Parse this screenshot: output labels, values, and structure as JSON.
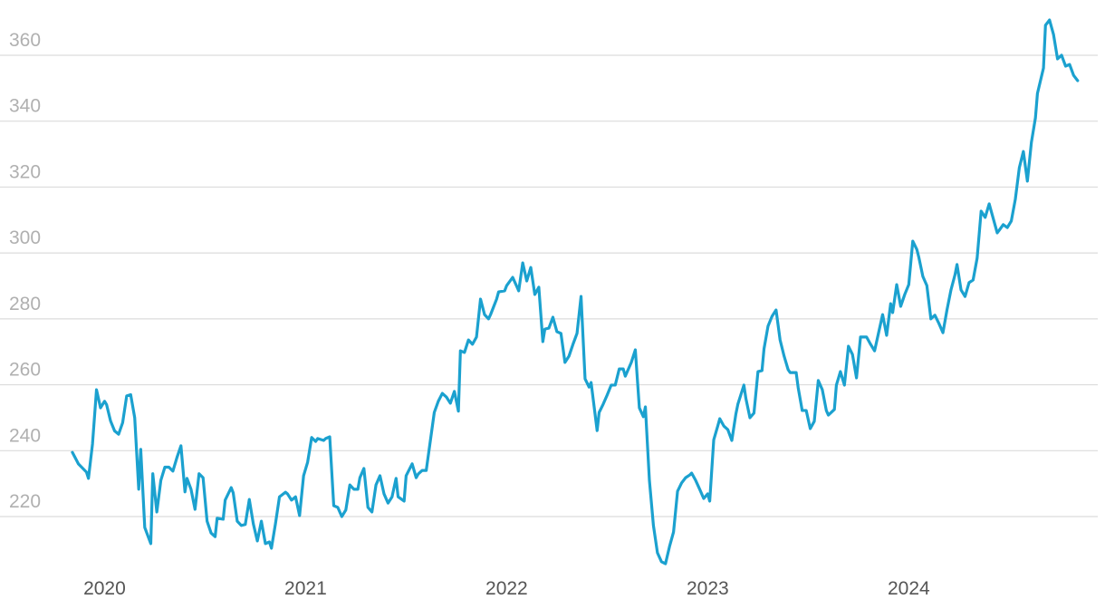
{
  "chart_data": {
    "type": "line",
    "color": "#1ba1cf",
    "grid": true,
    "xlim": [
      2019.48,
      2024.94
    ],
    "xticks": [
      2020,
      2021,
      2022,
      2023,
      2024
    ],
    "ylim": [
      204,
      376
    ],
    "yticks": [
      220,
      240,
      260,
      280,
      300,
      320,
      340,
      360
    ],
    "x": [
      2019.84,
      2019.87,
      2019.91,
      2019.92,
      2019.94,
      2019.96,
      2019.98,
      2020.0,
      2020.01,
      2020.03,
      2020.05,
      2020.07,
      2020.09,
      2020.11,
      2020.13,
      2020.15,
      2020.17,
      2020.18,
      2020.2,
      2020.23,
      2020.24,
      2020.26,
      2020.28,
      2020.3,
      2020.32,
      2020.34,
      2020.36,
      2020.38,
      2020.4,
      2020.41,
      2020.43,
      2020.45,
      2020.47,
      2020.49,
      2020.51,
      2020.53,
      2020.55,
      2020.56,
      2020.59,
      2020.6,
      2020.63,
      2020.64,
      2020.66,
      2020.68,
      2020.7,
      2020.72,
      2020.74,
      2020.76,
      2020.78,
      2020.8,
      2020.82,
      2020.83,
      2020.85,
      2020.87,
      2020.9,
      2020.91,
      2020.93,
      2020.95,
      2020.97,
      2020.99,
      2021.01,
      2021.03,
      2021.05,
      2021.06,
      2021.09,
      2021.1,
      2021.12,
      2021.14,
      2021.16,
      2021.18,
      2021.2,
      2021.22,
      2021.24,
      2021.26,
      2021.27,
      2021.29,
      2021.31,
      2021.33,
      2021.35,
      2021.37,
      2021.39,
      2021.41,
      2021.43,
      2021.45,
      2021.46,
      2021.49,
      2021.5,
      2021.53,
      2021.55,
      2021.56,
      2021.58,
      2021.6,
      2021.62,
      2021.64,
      2021.66,
      2021.68,
      2021.7,
      2021.72,
      2021.74,
      2021.76,
      2021.77,
      2021.79,
      2021.81,
      2021.83,
      2021.85,
      2021.87,
      2021.89,
      2021.91,
      2021.92,
      2021.95,
      2021.96,
      2021.99,
      2022.0,
      2022.03,
      2022.05,
      2022.06,
      2022.08,
      2022.1,
      2022.12,
      2022.14,
      2022.16,
      2022.18,
      2022.19,
      2022.21,
      2022.23,
      2022.25,
      2022.27,
      2022.29,
      2022.31,
      2022.33,
      2022.35,
      2022.37,
      2022.39,
      2022.41,
      2022.42,
      2022.45,
      2022.46,
      2022.48,
      2022.5,
      2022.52,
      2022.54,
      2022.56,
      2022.58,
      2022.59,
      2022.62,
      2022.64,
      2022.66,
      2022.68,
      2022.69,
      2022.71,
      2022.73,
      2022.75,
      2022.77,
      2022.79,
      2022.81,
      2022.83,
      2022.85,
      2022.87,
      2022.89,
      2022.91,
      2022.92,
      2022.94,
      2022.96,
      2022.98,
      2023.0,
      2023.01,
      2023.03,
      2023.05,
      2023.06,
      2023.08,
      2023.1,
      2023.12,
      2023.14,
      2023.15,
      2023.18,
      2023.19,
      2023.21,
      2023.23,
      2023.25,
      2023.27,
      2023.28,
      2023.3,
      2023.32,
      2023.34,
      2023.36,
      2023.38,
      2023.4,
      2023.41,
      2023.44,
      2023.45,
      2023.47,
      2023.49,
      2023.51,
      2023.53,
      2023.55,
      2023.57,
      2023.59,
      2023.6,
      2023.63,
      2023.64,
      2023.66,
      2023.68,
      2023.7,
      2023.72,
      2023.74,
      2023.76,
      2023.77,
      2023.79,
      2023.81,
      2023.83,
      2023.85,
      2023.87,
      2023.89,
      2023.91,
      2023.92,
      2023.94,
      2023.96,
      2023.98,
      2024.0,
      2024.02,
      2024.04,
      2024.05,
      2024.07,
      2024.09,
      2024.11,
      2024.13,
      2024.15,
      2024.17,
      2024.19,
      2024.21,
      2024.23,
      2024.24,
      2024.26,
      2024.28,
      2024.3,
      2024.32,
      2024.34,
      2024.36,
      2024.38,
      2024.4,
      2024.41,
      2024.44,
      2024.45,
      2024.47,
      2024.49,
      2024.51,
      2024.53,
      2024.55,
      2024.57,
      2024.59,
      2024.61,
      2024.63,
      2024.64,
      2024.67,
      2024.68,
      2024.7,
      2024.72,
      2024.74,
      2024.76,
      2024.78,
      2024.8,
      2024.82,
      2024.84
    ],
    "values": [
      239.5,
      236,
      233.5,
      231.6,
      242,
      258.5,
      253,
      255,
      254,
      249,
      246,
      245,
      248.5,
      256.6,
      257,
      250,
      228.3,
      240.4,
      216.7,
      211.8,
      233,
      221.4,
      231,
      235,
      235,
      233.8,
      237.9,
      241.5,
      227.5,
      231.6,
      228.3,
      222.2,
      233,
      231.8,
      218.6,
      215,
      213.9,
      219.5,
      219.2,
      225,
      228.8,
      227.2,
      218.6,
      217.3,
      217.6,
      225.2,
      217.8,
      212.6,
      218.6,
      211.8,
      212.3,
      210.4,
      217.8,
      226,
      227.4,
      226.9,
      225,
      226,
      220.3,
      232.4,
      236.5,
      244,
      242.8,
      243.7,
      243.1,
      243.7,
      244.2,
      223.3,
      222.8,
      220,
      222,
      229.6,
      228.3,
      228.3,
      231.8,
      234.6,
      222.8,
      221.4,
      229.6,
      232.4,
      226.9,
      224.1,
      226,
      231.6,
      226,
      224.7,
      232.4,
      236,
      231.8,
      232.9,
      234,
      234,
      242.8,
      251.6,
      255,
      257.4,
      256.3,
      254.4,
      258,
      252,
      270.3,
      269.8,
      273.6,
      272.3,
      274.5,
      286,
      281.3,
      280,
      281.3,
      286,
      288.2,
      288.5,
      290.1,
      292.6,
      289.9,
      288.5,
      297,
      291.5,
      295.6,
      287.4,
      289.6,
      273.1,
      276.9,
      277.2,
      280.5,
      276.1,
      275.6,
      266.8,
      268.7,
      272.3,
      275.6,
      286.8,
      261.8,
      259.3,
      260.7,
      246.1,
      251.6,
      254.1,
      256.9,
      259.9,
      259.9,
      264.8,
      264.8,
      262.6,
      266.8,
      270.6,
      253,
      250.3,
      253.3,
      231,
      217.3,
      209,
      206.3,
      205.7,
      210.9,
      215.3,
      227.7,
      230.2,
      231.8,
      232.6,
      233.2,
      231,
      228.3,
      225.5,
      226.9,
      224.7,
      243.3,
      247.5,
      249.7,
      247.5,
      246.4,
      243.1,
      251.1,
      254.1,
      259.9,
      255.8,
      250,
      251.4,
      264,
      264.3,
      270.9,
      277.8,
      280.8,
      282.7,
      273.6,
      268.7,
      264.6,
      263.7,
      263.7,
      259.1,
      252.2,
      252.2,
      246.7,
      248.9,
      261.3,
      258.5,
      252.2,
      250.8,
      252.5,
      259.9,
      264,
      259.9,
      271.7,
      269.2,
      262.1,
      274.5,
      274.5,
      274.5,
      272.3,
      270.3,
      275.8,
      281.3,
      275,
      284.6,
      281.9,
      290.4,
      283.8,
      287.4,
      290.4,
      303.6,
      301.1,
      298.7,
      292.9,
      290.1,
      280,
      281.1,
      278.6,
      275.8,
      282.7,
      288.8,
      293.4,
      296.5,
      288.8,
      286.8,
      291,
      291.8,
      298.4,
      312.7,
      310.8,
      314.9,
      312.7,
      306.1,
      306.9,
      308.6,
      307.7,
      309.7,
      316.3,
      325.9,
      330.8,
      321.8,
      333.6,
      341,
      348.4,
      356.1,
      369.1,
      370.7,
      366.3,
      358.9,
      360,
      356.7,
      357.2,
      353.9,
      352.3
    ]
  }
}
